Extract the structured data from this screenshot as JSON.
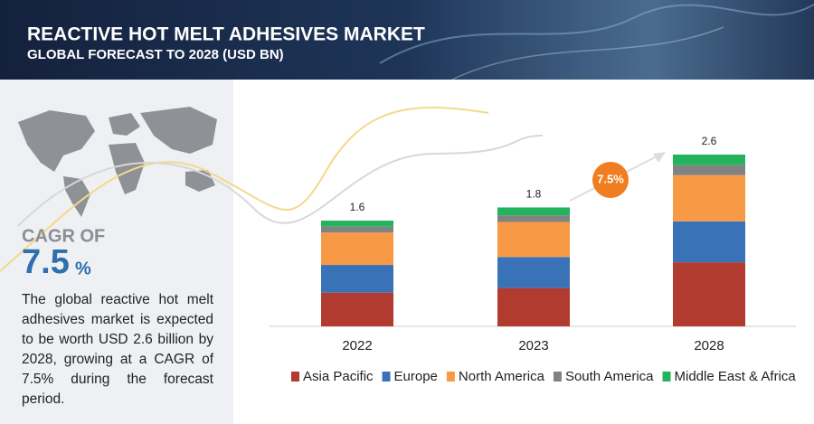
{
  "chart_data": {
    "type": "stacked-bar",
    "title": "REACTIVE HOT MELT ADHESIVES MARKET",
    "subtitle": "GLOBAL FORECAST TO 2028 (USD BN)",
    "categories": [
      "2022",
      "2023",
      "2028"
    ],
    "totals": [
      1.6,
      1.8,
      2.6
    ],
    "series": [
      {
        "name": "Asia Pacific",
        "color": "#b23b2f",
        "values": [
          0.51,
          0.58,
          0.97
        ]
      },
      {
        "name": "Europe",
        "color": "#3a72b8",
        "values": [
          0.42,
          0.47,
          0.62
        ]
      },
      {
        "name": "North America",
        "color": "#f89a45",
        "values": [
          0.49,
          0.53,
          0.7
        ]
      },
      {
        "name": "South America",
        "color": "#828282",
        "values": [
          0.09,
          0.1,
          0.15
        ]
      },
      {
        "name": "Middle East & Africa",
        "color": "#22b35c",
        "values": [
          0.09,
          0.12,
          0.16
        ]
      }
    ],
    "cagr": {
      "label": "CAGR OF",
      "value": "7.5",
      "unit": "%"
    },
    "cagr_bubble": "7.5%",
    "description": "The global reactive hot melt adhesives market is expected to be worth USD 2.6 billion by 2028, growing at a CAGR of 7.5% during the forecast period."
  }
}
